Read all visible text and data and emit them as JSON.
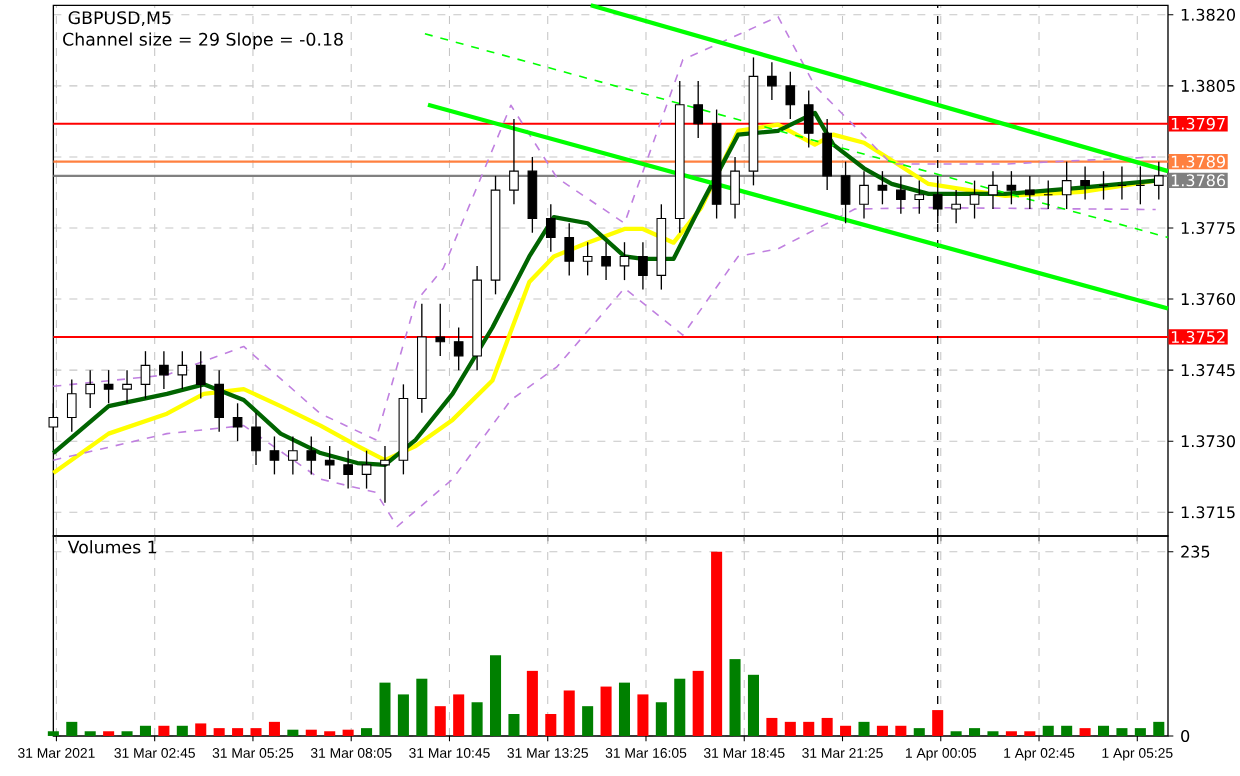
{
  "chart_data": [
    {
      "type": "candlestick",
      "title": "GBPUSD,M5",
      "subtitle": "Channel size = 29 Slope = -0.18",
      "color": "#000000",
      "grid": true,
      "tick_labels": "y",
      "xlim": [
        "2021-03-31T00:00",
        "2021-04-01T06:15"
      ],
      "ylim": [
        1.371,
        1.3822
      ],
      "xticks": [
        {
          "value": "2021-03-31T00:05",
          "label": null
        },
        {
          "value": "2021-03-31T02:45",
          "label": null
        },
        {
          "value": "2021-03-31T05:25",
          "label": null
        },
        {
          "value": "2021-03-31T08:05",
          "label": null
        },
        {
          "value": "2021-03-31T10:45",
          "label": null
        },
        {
          "value": "2021-03-31T13:25",
          "label": null
        },
        {
          "value": "2021-03-31T16:05",
          "label": null
        },
        {
          "value": "2021-03-31T18:45",
          "label": null
        },
        {
          "value": "2021-03-31T21:25",
          "label": null
        },
        {
          "value": "2021-04-01T00:05",
          "label": null
        },
        {
          "value": "2021-04-01T02:45",
          "label": null
        },
        {
          "value": "2021-04-01T05:25",
          "label": null
        }
      ],
      "yticks": [
        {
          "value": 1.3715,
          "label": "1.3715"
        },
        {
          "value": 1.373,
          "label": "1.3730"
        },
        {
          "value": 1.3745,
          "label": "1.3745"
        },
        {
          "value": 1.376,
          "label": "1.3760"
        },
        {
          "value": 1.3775,
          "label": "1.3775"
        },
        {
          "value": 1.379,
          "label": null
        },
        {
          "value": 1.3805,
          "label": "1.3805"
        },
        {
          "value": 1.382,
          "label": "1.3820"
        }
      ],
      "x": [
        "2021-03-31T00:00",
        "2021-03-31T00:30",
        "2021-03-31T01:00",
        "2021-03-31T01:30",
        "2021-03-31T02:00",
        "2021-03-31T02:30",
        "2021-03-31T03:00",
        "2021-03-31T03:30",
        "2021-03-31T04:00",
        "2021-03-31T04:30",
        "2021-03-31T05:00",
        "2021-03-31T05:30",
        "2021-03-31T06:00",
        "2021-03-31T06:30",
        "2021-03-31T07:00",
        "2021-03-31T07:30",
        "2021-03-31T08:00",
        "2021-03-31T08:30",
        "2021-03-31T09:00",
        "2021-03-31T09:30",
        "2021-03-31T10:00",
        "2021-03-31T10:30",
        "2021-03-31T11:00",
        "2021-03-31T11:30",
        "2021-03-31T12:00",
        "2021-03-31T12:30",
        "2021-03-31T13:00",
        "2021-03-31T13:30",
        "2021-03-31T14:00",
        "2021-03-31T14:30",
        "2021-03-31T15:00",
        "2021-03-31T15:30",
        "2021-03-31T16:00",
        "2021-03-31T16:30",
        "2021-03-31T17:00",
        "2021-03-31T17:30",
        "2021-03-31T18:00",
        "2021-03-31T18:30",
        "2021-03-31T19:00",
        "2021-03-31T19:30",
        "2021-03-31T20:00",
        "2021-03-31T20:30",
        "2021-03-31T21:00",
        "2021-03-31T21:30",
        "2021-03-31T22:00",
        "2021-03-31T22:30",
        "2021-03-31T23:00",
        "2021-03-31T23:30",
        "2021-04-01T00:00",
        "2021-04-01T00:30",
        "2021-04-01T01:00",
        "2021-04-01T01:30",
        "2021-04-01T02:00",
        "2021-04-01T02:30",
        "2021-04-01T03:00",
        "2021-04-01T03:30",
        "2021-04-01T04:00",
        "2021-04-01T04:30",
        "2021-04-01T05:00",
        "2021-04-01T05:30",
        "2021-04-01T06:00"
      ],
      "ohlc": [
        [
          1.3733,
          1.3738,
          1.373,
          1.3735
        ],
        [
          1.3735,
          1.3743,
          1.3732,
          1.374
        ],
        [
          1.374,
          1.3745,
          1.3737,
          1.3742
        ],
        [
          1.3742,
          1.3745,
          1.3738,
          1.3741
        ],
        [
          1.3741,
          1.3745,
          1.3738,
          1.3742
        ],
        [
          1.3742,
          1.3749,
          1.3739,
          1.3746
        ],
        [
          1.3746,
          1.3749,
          1.3741,
          1.3744
        ],
        [
          1.3744,
          1.3749,
          1.3741,
          1.3746
        ],
        [
          1.3746,
          1.3749,
          1.3739,
          1.3742
        ],
        [
          1.3742,
          1.3745,
          1.3732,
          1.3735
        ],
        [
          1.3735,
          1.3738,
          1.373,
          1.3733
        ],
        [
          1.3733,
          1.3736,
          1.3725,
          1.3728
        ],
        [
          1.3728,
          1.3731,
          1.3723,
          1.3726
        ],
        [
          1.3726,
          1.3731,
          1.3723,
          1.3728
        ],
        [
          1.3728,
          1.3731,
          1.3723,
          1.3726
        ],
        [
          1.3726,
          1.3729,
          1.3722,
          1.3725
        ],
        [
          1.3725,
          1.3728,
          1.372,
          1.3723
        ],
        [
          1.3723,
          1.3728,
          1.372,
          1.3725
        ],
        [
          1.3725,
          1.3729,
          1.3717,
          1.3726
        ],
        [
          1.3726,
          1.3742,
          1.3723,
          1.3739
        ],
        [
          1.3739,
          1.3759,
          1.3736,
          1.3752
        ],
        [
          1.3752,
          1.3759,
          1.3748,
          1.3751
        ],
        [
          1.3751,
          1.3754,
          1.3745,
          1.3748
        ],
        [
          1.3748,
          1.3767,
          1.3745,
          1.3764
        ],
        [
          1.3764,
          1.3786,
          1.3761,
          1.3783
        ],
        [
          1.3783,
          1.3798,
          1.378,
          1.3787
        ],
        [
          1.3787,
          1.379,
          1.3774,
          1.3777
        ],
        [
          1.3777,
          1.378,
          1.377,
          1.3773
        ],
        [
          1.3773,
          1.3776,
          1.3765,
          1.3768
        ],
        [
          1.3768,
          1.3772,
          1.3765,
          1.3769
        ],
        [
          1.3769,
          1.3772,
          1.3764,
          1.3767
        ],
        [
          1.3767,
          1.3772,
          1.3764,
          1.3769
        ],
        [
          1.3769,
          1.3772,
          1.3762,
          1.3765
        ],
        [
          1.3765,
          1.378,
          1.3762,
          1.3777
        ],
        [
          1.3777,
          1.3806,
          1.3774,
          1.3801
        ],
        [
          1.3801,
          1.3806,
          1.3794,
          1.3797
        ],
        [
          1.3797,
          1.38,
          1.3777,
          1.378
        ],
        [
          1.378,
          1.379,
          1.3777,
          1.3787
        ],
        [
          1.3787,
          1.3811,
          1.3784,
          1.3807
        ],
        [
          1.3807,
          1.381,
          1.3802,
          1.3805
        ],
        [
          1.3805,
          1.3808,
          1.3798,
          1.3801
        ],
        [
          1.3801,
          1.3804,
          1.3792,
          1.3795
        ],
        [
          1.3795,
          1.3798,
          1.3783,
          1.3786
        ],
        [
          1.3786,
          1.3789,
          1.3776,
          1.378
        ],
        [
          1.378,
          1.3787,
          1.3777,
          1.3784
        ],
        [
          1.3784,
          1.3787,
          1.378,
          1.3783
        ],
        [
          1.3783,
          1.3786,
          1.3778,
          1.3781
        ],
        [
          1.3781,
          1.3785,
          1.3778,
          1.3782
        ],
        [
          1.3782,
          1.3785,
          1.3776,
          1.3779
        ],
        [
          1.3779,
          1.3783,
          1.3776,
          1.378
        ],
        [
          1.378,
          1.3785,
          1.3777,
          1.3782
        ],
        [
          1.3782,
          1.3787,
          1.3779,
          1.3784
        ],
        [
          1.3784,
          1.3787,
          1.378,
          1.3783
        ],
        [
          1.3783,
          1.3786,
          1.3779,
          1.3782
        ],
        [
          1.3782,
          1.3785,
          1.3779,
          1.3782
        ],
        [
          1.3782,
          1.3789,
          1.3779,
          1.3785
        ],
        [
          1.3785,
          1.3788,
          1.3781,
          1.3784
        ],
        [
          1.3784,
          1.3787,
          1.3781,
          1.3784
        ],
        [
          1.3784,
          1.3788,
          1.3781,
          1.3784
        ],
        [
          1.3784,
          1.3788,
          1.378,
          1.3784
        ],
        [
          1.3784,
          1.3789,
          1.3781,
          1.3786
        ]
      ],
      "series": [
        {
          "type": "line",
          "color": "#ffff00",
          "line_style": "solid",
          "x": [
            "2021-03-31T00:00",
            "2021-03-31T01:30",
            "2021-03-31T03:05",
            "2021-03-31T04:05",
            "2021-03-31T05:10",
            "2021-03-31T06:10",
            "2021-03-31T07:15",
            "2021-03-31T08:15",
            "2021-03-31T09:00",
            "2021-03-31T09:50",
            "2021-03-31T10:50",
            "2021-03-31T11:55",
            "2021-03-31T12:55",
            "2021-03-31T13:35",
            "2021-03-31T14:30",
            "2021-03-31T15:30",
            "2021-03-31T16:00",
            "2021-03-31T16:50",
            "2021-03-31T17:35",
            "2021-03-31T18:35",
            "2021-03-31T19:40",
            "2021-03-31T20:40",
            "2021-03-31T21:10",
            "2021-03-31T22:00",
            "2021-03-31T22:45",
            "2021-03-31T23:45",
            "2021-04-01T01:50",
            "2021-04-01T03:55",
            "2021-04-01T05:55"
          ],
          "values": [
            1.37233,
            1.37316,
            1.37358,
            1.374,
            1.3741,
            1.37374,
            1.37333,
            1.3729,
            1.3726,
            1.3729,
            1.37345,
            1.37428,
            1.37636,
            1.3769,
            1.37719,
            1.37748,
            1.37748,
            1.37719,
            1.37793,
            1.37955,
            1.37968,
            1.37926,
            1.37947,
            1.3793,
            1.37893,
            1.37843,
            1.37818,
            1.37826,
            1.3785
          ]
        },
        {
          "type": "line",
          "color": "#006400",
          "line_style": "solid",
          "x": [
            "2021-03-31T00:00",
            "2021-03-31T01:30",
            "2021-03-31T03:05",
            "2021-03-31T04:05",
            "2021-03-31T05:10",
            "2021-03-31T06:10",
            "2021-03-31T07:15",
            "2021-03-31T08:15",
            "2021-03-31T09:00",
            "2021-03-31T09:50",
            "2021-03-31T10:50",
            "2021-03-31T11:55",
            "2021-03-31T12:55",
            "2021-03-31T13:35",
            "2021-03-31T14:30",
            "2021-03-31T15:30",
            "2021-03-31T16:00",
            "2021-03-31T16:50",
            "2021-03-31T17:35",
            "2021-03-31T18:35",
            "2021-03-31T19:40",
            "2021-03-31T20:40",
            "2021-03-31T21:10",
            "2021-03-31T22:00",
            "2021-03-31T22:45",
            "2021-03-31T23:45",
            "2021-04-01T01:50",
            "2021-04-01T03:55",
            "2021-04-01T05:55"
          ],
          "values": [
            1.37275,
            1.37374,
            1.374,
            1.3742,
            1.37387,
            1.37316,
            1.37275,
            1.37254,
            1.3725,
            1.37303,
            1.374,
            1.3754,
            1.3769,
            1.37773,
            1.3776,
            1.3769,
            1.37685,
            1.37685,
            1.378,
            1.37947,
            1.37955,
            1.37993,
            1.37926,
            1.37876,
            1.37843,
            1.37822,
            1.37822,
            1.37835,
            1.3785
          ]
        },
        {
          "type": "line",
          "color": "#c080e0",
          "line_style": "dashed",
          "x": [
            "2021-03-31T00:00",
            "2021-03-31T03:05",
            "2021-03-31T05:10",
            "2021-03-31T07:15",
            "2021-03-31T08:45",
            "2021-03-31T09:50",
            "2021-03-31T10:35",
            "2021-03-31T12:25",
            "2021-03-31T13:40",
            "2021-03-31T15:30",
            "2021-03-31T17:05",
            "2021-03-31T19:40",
            "2021-03-31T20:40",
            "2021-03-31T22:45",
            "2021-04-01T01:50",
            "2021-04-01T05:55"
          ],
          "values": [
            1.37416,
            1.3744,
            1.375,
            1.37358,
            1.37303,
            1.37594,
            1.37665,
            1.38009,
            1.37856,
            1.3776,
            1.38105,
            1.38196,
            1.3805,
            1.37885,
            1.37885,
            1.379
          ]
        },
        {
          "type": "line",
          "color": "#c080e0",
          "line_style": "dashed",
          "x": [
            "2021-03-31T00:00",
            "2021-03-31T03:05",
            "2021-03-31T05:10",
            "2021-03-31T07:15",
            "2021-03-31T08:45",
            "2021-03-31T09:20",
            "2021-03-31T10:50",
            "2021-03-31T12:25",
            "2021-03-31T13:40",
            "2021-03-31T15:30",
            "2021-03-31T17:05",
            "2021-03-31T18:35",
            "2021-03-31T19:40",
            "2021-03-31T21:45",
            "2021-03-31T23:45",
            "2021-04-01T05:55"
          ],
          "values": [
            1.3726,
            1.37316,
            1.37333,
            1.3722,
            1.37192,
            1.3712,
            1.3722,
            1.37387,
            1.37457,
            1.37623,
            1.37524,
            1.3769,
            1.37706,
            1.3779,
            1.37793,
            1.37789
          ]
        },
        {
          "type": "line",
          "color": "#00ff00",
          "line_style": "solid",
          "x": [
            "2021-03-31T14:35",
            "2021-04-01T06:15"
          ],
          "values": [
            1.3822,
            1.3787
          ]
        },
        {
          "type": "line",
          "color": "#00ff00",
          "line_style": "dashed",
          "x": [
            "2021-03-31T10:05",
            "2021-04-01T06:15"
          ],
          "values": [
            1.3816,
            1.3773
          ]
        },
        {
          "type": "line",
          "color": "#00ff00",
          "line_style": "solid",
          "x": [
            "2021-03-31T10:10",
            "2021-04-01T06:15"
          ],
          "values": [
            1.3801,
            1.3758
          ]
        }
      ],
      "ref_lines": [
        {
          "axis": "y",
          "value": 1.3797,
          "label": "1.3797",
          "color": "#ff0000"
        },
        {
          "axis": "y",
          "value": 1.3789,
          "label": "1.3789",
          "color": "#ff8040"
        },
        {
          "axis": "y",
          "value": 1.3786,
          "label": "1.3786",
          "color": "#808080"
        },
        {
          "axis": "y",
          "value": 1.3752,
          "label": "1.3752",
          "color": "#ff0000"
        },
        {
          "axis": "x",
          "value": "2021-04-01T00:00",
          "color": "#000000",
          "line_style": "dashed"
        }
      ]
    },
    {
      "type": "bar",
      "title": "Volumes 1",
      "grid": true,
      "xlim": [
        "2021-03-31T00:00",
        "2021-04-01T06:15"
      ],
      "ylim": [
        0,
        255
      ],
      "yticks": [
        0,
        235
      ],
      "xticks": [
        {
          "value": "2021-03-31T00:05",
          "label": "31 Mar 2021"
        },
        {
          "value": "2021-03-31T02:45",
          "label": "31 Mar 02:45"
        },
        {
          "value": "2021-03-31T05:25",
          "label": "31 Mar 05:25"
        },
        {
          "value": "2021-03-31T08:05",
          "label": "31 Mar 08:05"
        },
        {
          "value": "2021-03-31T10:45",
          "label": "31 Mar 10:45"
        },
        {
          "value": "2021-03-31T13:25",
          "label": "31 Mar 13:25"
        },
        {
          "value": "2021-03-31T16:05",
          "label": "31 Mar 16:05"
        },
        {
          "value": "2021-03-31T18:45",
          "label": "31 Mar 18:45"
        },
        {
          "value": "2021-03-31T21:25",
          "label": "31 Mar 21:25"
        },
        {
          "value": "2021-04-01T00:05",
          "label": "1 Apr 00:05"
        },
        {
          "value": "2021-04-01T02:45",
          "label": "1 Apr 02:45"
        },
        {
          "value": "2021-04-01T05:25",
          "label": "1 Apr 05:25"
        }
      ],
      "x": [
        "2021-03-31T00:00",
        "2021-03-31T00:30",
        "2021-03-31T01:00",
        "2021-03-31T01:30",
        "2021-03-31T02:00",
        "2021-03-31T02:30",
        "2021-03-31T03:00",
        "2021-03-31T03:30",
        "2021-03-31T04:00",
        "2021-03-31T04:30",
        "2021-03-31T05:00",
        "2021-03-31T05:30",
        "2021-03-31T06:00",
        "2021-03-31T06:30",
        "2021-03-31T07:00",
        "2021-03-31T07:30",
        "2021-03-31T08:00",
        "2021-03-31T08:30",
        "2021-03-31T09:00",
        "2021-03-31T09:30",
        "2021-03-31T10:00",
        "2021-03-31T10:30",
        "2021-03-31T11:00",
        "2021-03-31T11:30",
        "2021-03-31T12:00",
        "2021-03-31T12:30",
        "2021-03-31T13:00",
        "2021-03-31T13:30",
        "2021-03-31T14:00",
        "2021-03-31T14:30",
        "2021-03-31T15:00",
        "2021-03-31T15:30",
        "2021-03-31T16:00",
        "2021-03-31T16:30",
        "2021-03-31T17:00",
        "2021-03-31T17:30",
        "2021-03-31T18:00",
        "2021-03-31T18:30",
        "2021-03-31T19:00",
        "2021-03-31T19:30",
        "2021-03-31T20:00",
        "2021-03-31T20:30",
        "2021-03-31T21:00",
        "2021-03-31T21:30",
        "2021-03-31T22:00",
        "2021-03-31T22:30",
        "2021-03-31T23:00",
        "2021-03-31T23:30",
        "2021-04-01T00:00",
        "2021-04-01T00:30",
        "2021-04-01T01:00",
        "2021-04-01T01:30",
        "2021-04-01T02:00",
        "2021-04-01T02:30",
        "2021-04-01T03:00",
        "2021-04-01T03:30",
        "2021-04-01T04:00",
        "2021-04-01T04:30",
        "2021-04-01T05:00",
        "2021-04-01T05:30",
        "2021-04-01T06:00"
      ],
      "values": [
        6,
        18,
        6,
        6,
        6,
        13,
        13,
        13,
        16,
        10,
        10,
        10,
        18,
        8,
        8,
        6,
        8,
        10,
        68,
        53,
        73,
        38,
        53,
        43,
        103,
        28,
        83,
        28,
        58,
        38,
        63,
        68,
        53,
        43,
        73,
        83,
        235,
        98,
        78,
        23,
        18,
        18,
        23,
        13,
        18,
        13,
        13,
        10,
        33,
        6,
        10,
        6,
        6,
        6,
        13,
        13,
        10,
        13,
        10,
        10,
        18
      ],
      "colors": [
        "#008000",
        "#008000",
        "#008000",
        "#ff0000",
        "#008000",
        "#008000",
        "#ff0000",
        "#008000",
        "#ff0000",
        "#ff0000",
        "#ff0000",
        "#ff0000",
        "#ff0000",
        "#008000",
        "#ff0000",
        "#ff0000",
        "#ff0000",
        "#008000",
        "#008000",
        "#008000",
        "#008000",
        "#ff0000",
        "#ff0000",
        "#008000",
        "#008000",
        "#008000",
        "#ff0000",
        "#ff0000",
        "#ff0000",
        "#008000",
        "#ff0000",
        "#008000",
        "#ff0000",
        "#008000",
        "#008000",
        "#ff0000",
        "#ff0000",
        "#008000",
        "#008000",
        "#ff0000",
        "#ff0000",
        "#ff0000",
        "#ff0000",
        "#ff0000",
        "#008000",
        "#ff0000",
        "#ff0000",
        "#008000",
        "#ff0000",
        "#008000",
        "#008000",
        "#008000",
        "#ff0000",
        "#ff0000",
        "#008000",
        "#008000",
        "#ff0000",
        "#008000",
        "#008000",
        "#008000",
        "#008000"
      ],
      "ref_lines": [
        {
          "axis": "x",
          "value": "2021-04-01T00:00",
          "color": "#000000",
          "line_style": "dashed"
        }
      ]
    }
  ]
}
